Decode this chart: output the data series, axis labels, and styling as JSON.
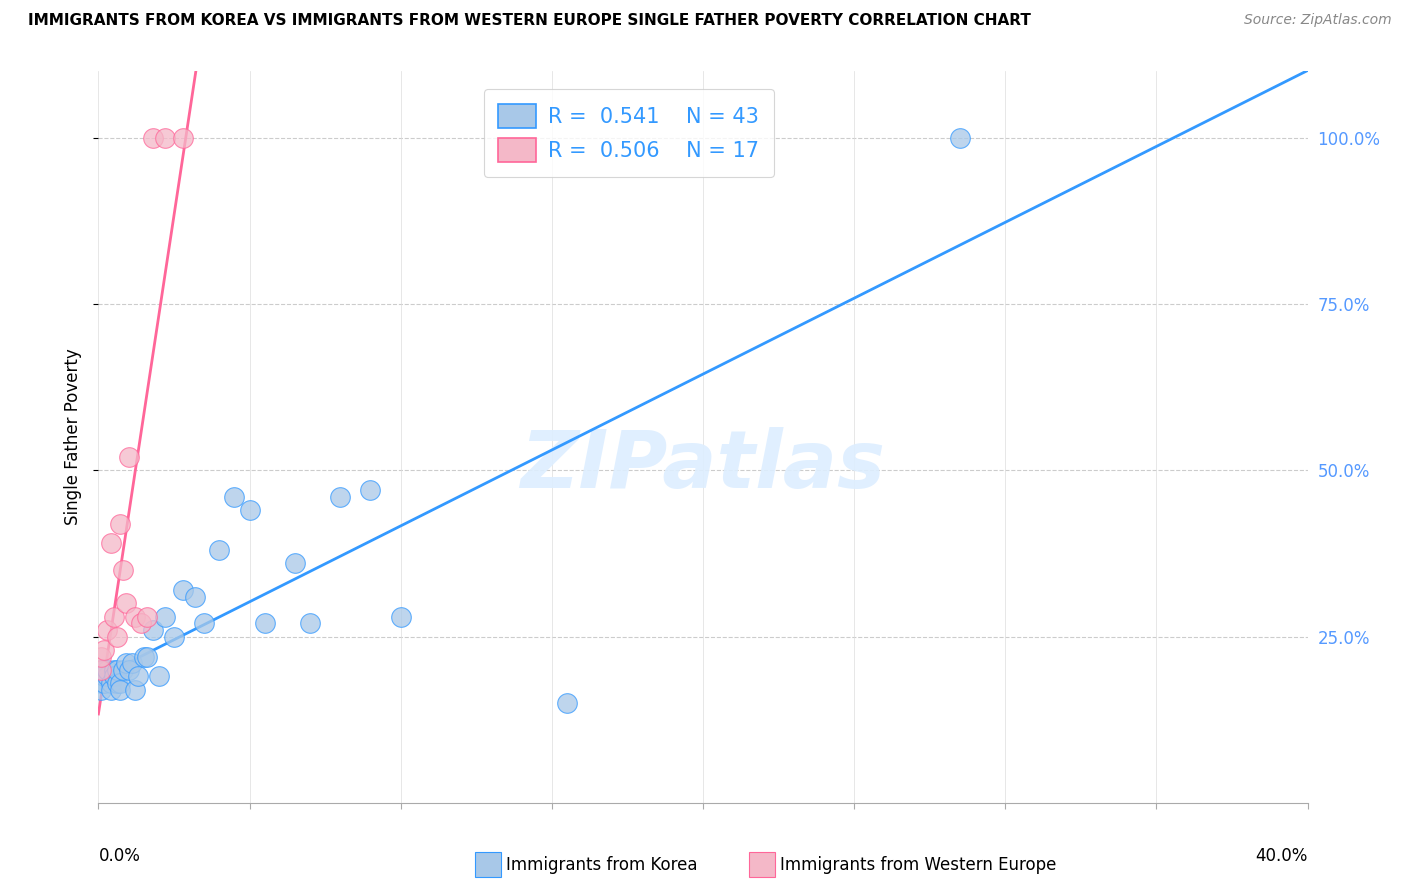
{
  "title": "IMMIGRANTS FROM KOREA VS IMMIGRANTS FROM WESTERN EUROPE SINGLE FATHER POVERTY CORRELATION CHART",
  "source": "Source: ZipAtlas.com",
  "ylabel": "Single Father Poverty",
  "legend_label1": "Immigrants from Korea",
  "legend_label2": "Immigrants from Western Europe",
  "R1": "0.541",
  "N1": "43",
  "R2": "0.506",
  "N2": "17",
  "blue_color": "#a8c8e8",
  "pink_color": "#f4b8c8",
  "blue_line_color": "#3399ff",
  "pink_line_color": "#ff6699",
  "right_axis_color": "#5599ff",
  "watermark_color": "#ddeeff",
  "korea_x": [
    0.001,
    0.001,
    0.001,
    0.002,
    0.002,
    0.002,
    0.003,
    0.003,
    0.003,
    0.004,
    0.004,
    0.005,
    0.005,
    0.006,
    0.006,
    0.007,
    0.007,
    0.008,
    0.009,
    0.01,
    0.011,
    0.012,
    0.013,
    0.015,
    0.016,
    0.018,
    0.02,
    0.022,
    0.025,
    0.028,
    0.032,
    0.035,
    0.04,
    0.045,
    0.05,
    0.055,
    0.065,
    0.07,
    0.08,
    0.09,
    0.1,
    0.155,
    0.285
  ],
  "korea_y": [
    0.2,
    0.18,
    0.17,
    0.19,
    0.2,
    0.18,
    0.2,
    0.19,
    0.2,
    0.18,
    0.17,
    0.2,
    0.19,
    0.18,
    0.2,
    0.18,
    0.17,
    0.2,
    0.21,
    0.2,
    0.21,
    0.17,
    0.19,
    0.22,
    0.22,
    0.26,
    0.19,
    0.28,
    0.25,
    0.32,
    0.31,
    0.27,
    0.38,
    0.46,
    0.44,
    0.27,
    0.36,
    0.27,
    0.46,
    0.47,
    0.28,
    0.15,
    1.0
  ],
  "europe_x": [
    0.001,
    0.001,
    0.002,
    0.003,
    0.004,
    0.005,
    0.006,
    0.007,
    0.008,
    0.009,
    0.01,
    0.012,
    0.014,
    0.016,
    0.018,
    0.022,
    0.028
  ],
  "europe_y": [
    0.2,
    0.22,
    0.23,
    0.26,
    0.39,
    0.28,
    0.25,
    0.42,
    0.35,
    0.3,
    0.52,
    0.28,
    0.27,
    0.28,
    1.0,
    1.0,
    1.0
  ],
  "xlim": [
    0.0,
    0.4
  ],
  "ylim": [
    0.0,
    1.1
  ],
  "yticks": [
    0.25,
    0.5,
    0.75,
    1.0
  ],
  "ytick_labels": [
    "25.0%",
    "50.0%",
    "75.0%",
    "100.0%"
  ],
  "xtick_labels": [
    "0.0%",
    "40.0%"
  ]
}
